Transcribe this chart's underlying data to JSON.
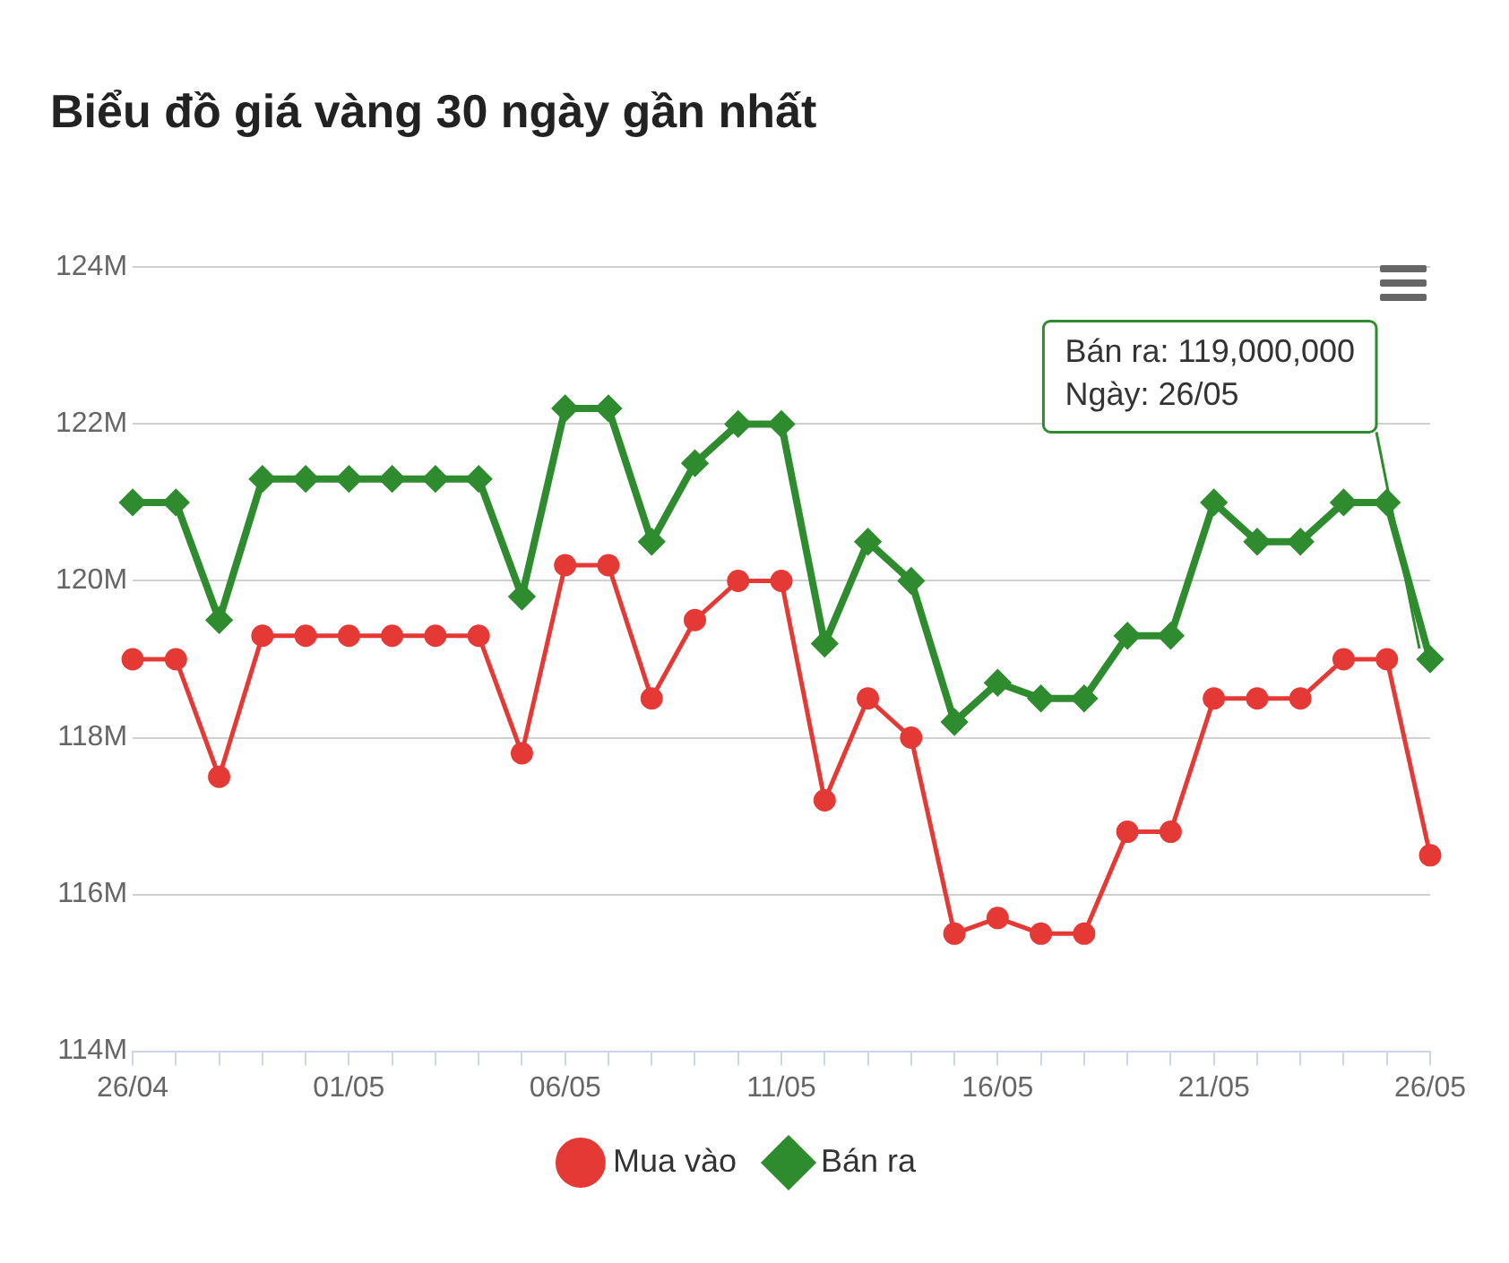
{
  "chart_data": {
    "type": "line",
    "title": "Biểu đồ giá vàng 30 ngày gần nhất",
    "categories": [
      "26/04",
      null,
      null,
      null,
      null,
      "01/05",
      null,
      null,
      null,
      null,
      "06/05",
      null,
      null,
      null,
      null,
      "11/05",
      null,
      null,
      null,
      null,
      "16/05",
      null,
      null,
      null,
      null,
      "21/05",
      null,
      null,
      null,
      null,
      "26/05"
    ],
    "series": [
      {
        "name": "Mua vào",
        "color": "#e53935",
        "marker": "circle",
        "values": [
          119,
          119,
          117.5,
          119.3,
          119.3,
          119.3,
          119.3,
          119.3,
          119.3,
          117.8,
          120.2,
          120.2,
          118.5,
          119.5,
          120,
          120,
          117.2,
          118.5,
          118,
          115.5,
          115.7,
          115.5,
          115.5,
          116.8,
          116.8,
          118.5,
          118.5,
          118.5,
          119,
          119,
          116.5
        ]
      },
      {
        "name": "Bán ra",
        "color": "#2e8b2e",
        "marker": "diamond",
        "values": [
          121,
          121,
          119.5,
          121.3,
          121.3,
          121.3,
          121.3,
          121.3,
          121.3,
          119.8,
          122.2,
          122.2,
          120.5,
          121.5,
          122,
          122,
          119.2,
          120.5,
          120,
          118.2,
          118.7,
          118.5,
          118.5,
          119.3,
          119.3,
          121,
          120.5,
          120.5,
          121,
          121,
          119
        ]
      }
    ],
    "ylim": [
      114,
      124
    ],
    "yticks": [
      {
        "value": 114,
        "label": "114M"
      },
      {
        "value": 116,
        "label": "116M"
      },
      {
        "value": 118,
        "label": "118M"
      },
      {
        "value": 120,
        "label": "120M"
      },
      {
        "value": 122,
        "label": "122M"
      },
      {
        "value": 124,
        "label": "124M"
      }
    ],
    "grid": "y",
    "legend": "bottom",
    "line_style": "solid",
    "annotations": [
      {
        "text": "Bán ra: 119,000,000\nNgày: 26/05",
        "x": "26/05",
        "y": 119
      }
    ]
  }
}
